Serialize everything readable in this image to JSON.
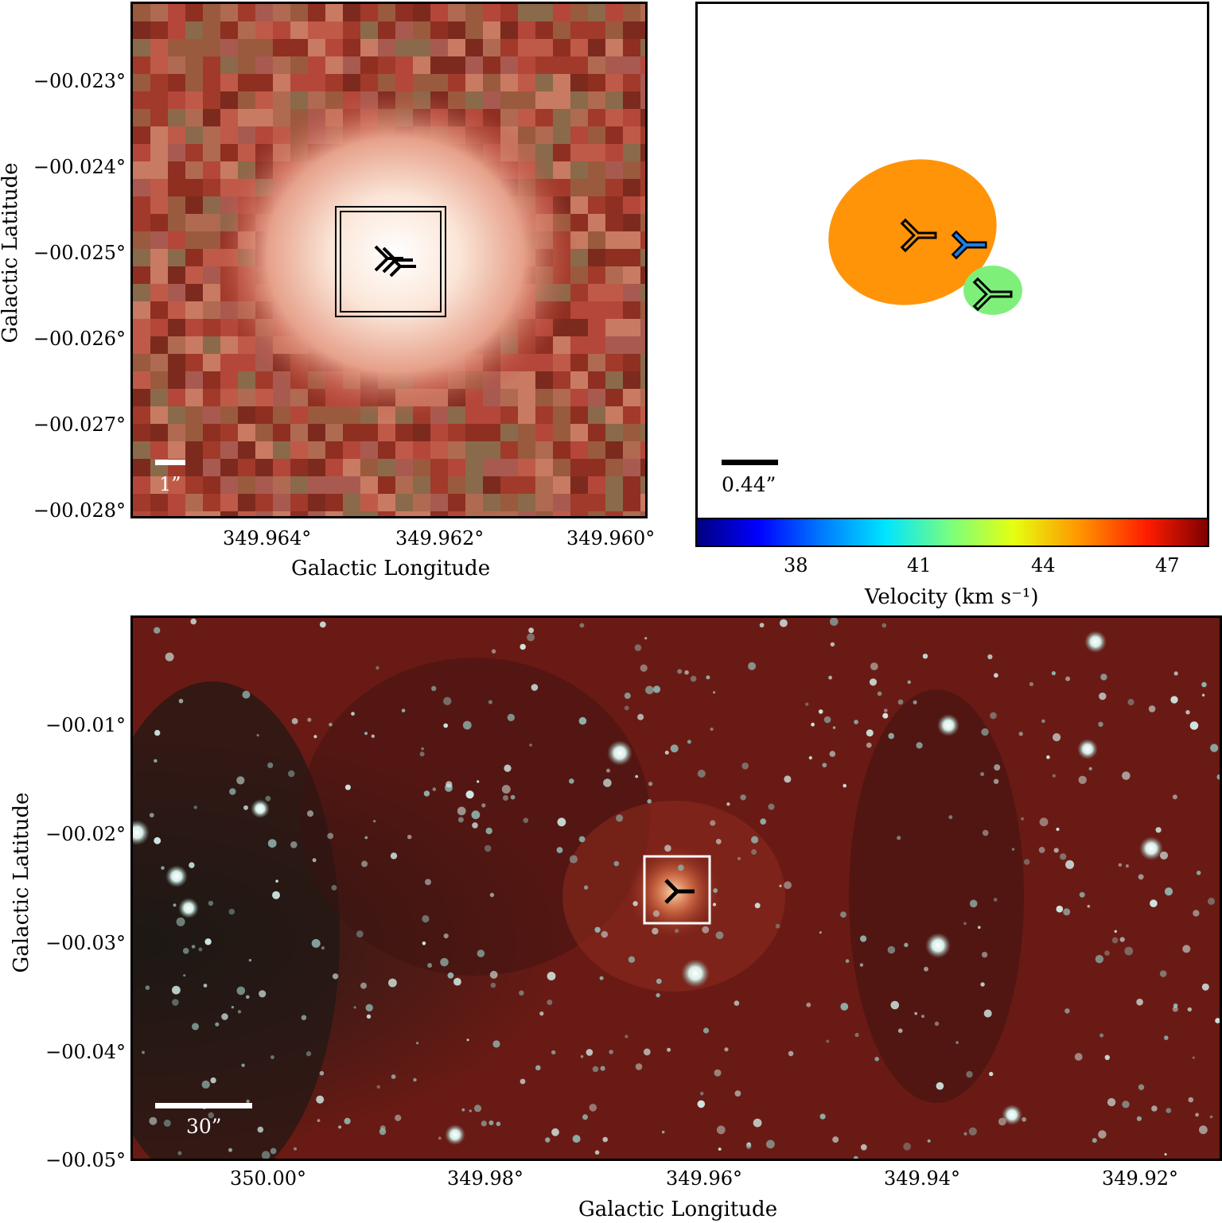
{
  "top_left": {
    "y_ticks": [
      "−00.023°",
      "−00.024°",
      "−00.025°",
      "−00.026°",
      "−00.027°",
      "−00.028°"
    ],
    "x_ticks": [
      "349.964°",
      "349.962°",
      "349.960°"
    ],
    "xlabel": "Galactic Longitude",
    "ylabel": "Galactic Latitude",
    "scale_bar": "1”"
  },
  "top_right": {
    "scale_bar": "0.44”",
    "colorbar_ticks": [
      "38",
      "41",
      "44",
      "47"
    ],
    "colorbar_label": "Velocity (km s⁻¹)",
    "colors": {
      "orange_region": "#ff9409",
      "green_region": "#7ef07a",
      "blue_marker": "#1c7fe6"
    }
  },
  "bottom": {
    "y_ticks": [
      "−00.01°",
      "−00.02°",
      "−00.03°",
      "−00.04°",
      "−00.05°"
    ],
    "x_ticks": [
      "350.00°",
      "349.98°",
      "349.96°",
      "349.94°",
      "349.92°"
    ],
    "xlabel": "Galactic Longitude",
    "ylabel": "Galactic Latitude",
    "scale_bar": "30”"
  }
}
